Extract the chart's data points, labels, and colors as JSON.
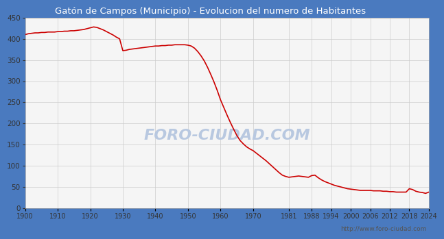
{
  "title": "Gatón de Campos (Municipio) - Evolucion del numero de Habitantes",
  "title_color": "white",
  "title_bg_color": "#4a7abf",
  "plot_bg_color": "#f5f5f5",
  "line_color": "#cc0000",
  "grid_color": "#cccccc",
  "watermark_text": "FORO-CIUDAD.COM",
  "watermark_color": "#b8c8e0",
  "footer": "http://www.foro-ciudad.com",
  "years": [
    1900,
    1901,
    1902,
    1903,
    1904,
    1905,
    1906,
    1907,
    1908,
    1909,
    1910,
    1911,
    1912,
    1913,
    1914,
    1915,
    1916,
    1917,
    1918,
    1919,
    1920,
    1921,
    1922,
    1923,
    1924,
    1925,
    1926,
    1927,
    1928,
    1929,
    1930,
    1931,
    1932,
    1933,
    1934,
    1935,
    1936,
    1937,
    1938,
    1939,
    1940,
    1941,
    1942,
    1943,
    1944,
    1945,
    1946,
    1947,
    1948,
    1949,
    1950,
    1951,
    1952,
    1953,
    1954,
    1955,
    1956,
    1957,
    1958,
    1959,
    1960,
    1961,
    1962,
    1963,
    1964,
    1965,
    1966,
    1967,
    1968,
    1969,
    1970,
    1971,
    1972,
    1973,
    1974,
    1975,
    1976,
    1977,
    1978,
    1979,
    1980,
    1981,
    1982,
    1983,
    1984,
    1985,
    1986,
    1987,
    1988,
    1989,
    1990,
    1991,
    1992,
    1993,
    1994,
    1995,
    1996,
    1997,
    1998,
    1999,
    2000,
    2001,
    2002,
    2003,
    2004,
    2005,
    2006,
    2007,
    2008,
    2009,
    2010,
    2011,
    2012,
    2013,
    2014,
    2015,
    2016,
    2017,
    2018,
    2019,
    2020,
    2021,
    2022,
    2023,
    2024
  ],
  "population": [
    410,
    412,
    413,
    414,
    414,
    415,
    415,
    416,
    416,
    416,
    417,
    417,
    418,
    418,
    419,
    419,
    420,
    421,
    422,
    424,
    426,
    428,
    427,
    424,
    421,
    417,
    413,
    409,
    404,
    400,
    372,
    373,
    375,
    376,
    377,
    378,
    379,
    380,
    381,
    382,
    383,
    383,
    384,
    384,
    385,
    385,
    386,
    386,
    386,
    386,
    385,
    383,
    378,
    370,
    360,
    348,
    333,
    316,
    298,
    278,
    256,
    238,
    220,
    203,
    187,
    172,
    160,
    152,
    145,
    140,
    136,
    130,
    124,
    118,
    112,
    105,
    98,
    91,
    84,
    78,
    75,
    73,
    74,
    75,
    76,
    75,
    74,
    73,
    77,
    78,
    72,
    67,
    63,
    60,
    57,
    54,
    52,
    50,
    48,
    46,
    45,
    44,
    43,
    42,
    42,
    42,
    42,
    41,
    41,
    41,
    40,
    40,
    39,
    39,
    38,
    38,
    38,
    38,
    46,
    44,
    40,
    38,
    37,
    35,
    38
  ],
  "xtick_positions": [
    1900,
    1910,
    1920,
    1930,
    1940,
    1950,
    1960,
    1970,
    1981,
    1988,
    1994,
    2000,
    2006,
    2012,
    2018,
    2024
  ],
  "xtick_labels": [
    "1900",
    "1910",
    "1920",
    "1930",
    "1940",
    "1950",
    "1960",
    "1970",
    "1981",
    "1988",
    "1994",
    "2000",
    "2006",
    "2012",
    "2018",
    "2024"
  ],
  "yticks": [
    0,
    50,
    100,
    150,
    200,
    250,
    300,
    350,
    400,
    450
  ],
  "ylim": [
    0,
    450
  ],
  "xlim": [
    1900,
    2024
  ]
}
